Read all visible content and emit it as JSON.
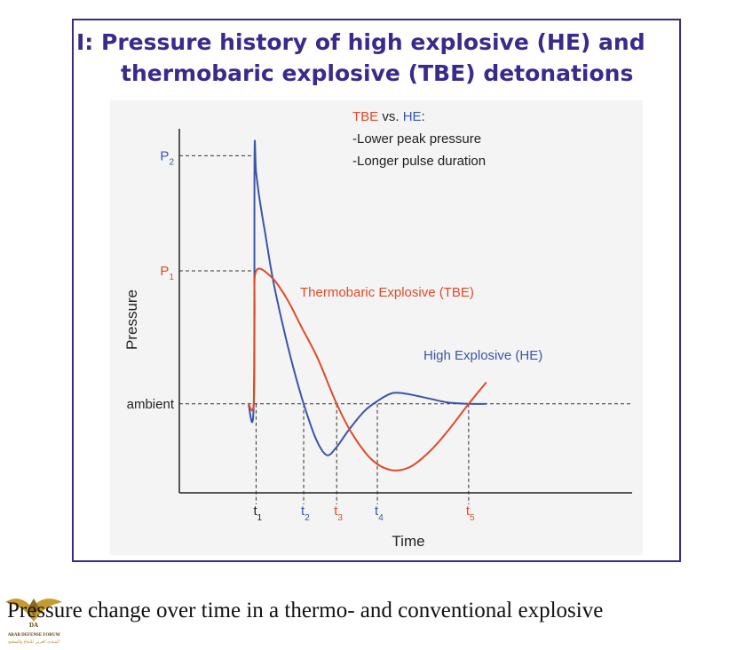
{
  "chart_data": {
    "type": "line",
    "title_line1": "I: Pressure history of high explosive (HE) and",
    "title_line2": "thermobaric explosive (TBE) detonations",
    "xlabel": "Time",
    "ylabel": "Pressure",
    "x_ticks": [
      {
        "label": "t",
        "sub": "1",
        "x": 1.0,
        "color": "#222222"
      },
      {
        "label": "t",
        "sub": "2",
        "x": 1.62,
        "color": "#3b55a7"
      },
      {
        "label": "t",
        "sub": "3",
        "x": 2.05,
        "color": "#e04a28"
      },
      {
        "label": "t",
        "sub": "4",
        "x": 2.58,
        "color": "#3b55a7"
      },
      {
        "label": "t",
        "sub": "5",
        "x": 3.77,
        "color": "#e04a28"
      }
    ],
    "y_levels": [
      {
        "label": "P",
        "sub": "2",
        "y": 9.2,
        "color": "#3b55a7"
      },
      {
        "label": "P",
        "sub": "1",
        "y": 4.93,
        "color": "#e04a28"
      },
      {
        "label": "ambient",
        "sub": "",
        "y": 0,
        "color": "#222222"
      }
    ],
    "xlim": [
      0,
      5.9
    ],
    "ylim": [
      -3.3,
      10.2
    ],
    "series": [
      {
        "name": "High Explosive (HE)",
        "color": "#3b55a7",
        "points": [
          [
            0.9,
            0
          ],
          [
            0.97,
            0
          ],
          [
            0.98,
            9.2
          ],
          [
            1.0,
            8.6
          ],
          [
            1.05,
            7.5
          ],
          [
            1.12,
            6.3
          ],
          [
            1.22,
            4.6
          ],
          [
            1.35,
            2.9
          ],
          [
            1.48,
            1.4
          ],
          [
            1.62,
            0
          ],
          [
            1.78,
            -1.3
          ],
          [
            1.92,
            -1.9
          ],
          [
            2.05,
            -1.6
          ],
          [
            2.2,
            -1.0
          ],
          [
            2.4,
            -0.3
          ],
          [
            2.58,
            0.1
          ],
          [
            2.78,
            0.4
          ],
          [
            3.0,
            0.35
          ],
          [
            3.25,
            0.2
          ],
          [
            3.5,
            0.05
          ],
          [
            3.77,
            0
          ],
          [
            4.0,
            0
          ]
        ]
      },
      {
        "name": "Thermobaric Explosive (TBE)",
        "color": "#e04a28",
        "points": [
          [
            0.9,
            0
          ],
          [
            0.97,
            0
          ],
          [
            0.98,
            3.3
          ],
          [
            1.0,
            4.93
          ],
          [
            1.2,
            4.7
          ],
          [
            1.4,
            3.9
          ],
          [
            1.6,
            2.8
          ],
          [
            1.8,
            1.7
          ],
          [
            2.05,
            0
          ],
          [
            2.25,
            -1.1
          ],
          [
            2.5,
            -2.05
          ],
          [
            2.75,
            -2.45
          ],
          [
            3.0,
            -2.35
          ],
          [
            3.25,
            -1.8
          ],
          [
            3.5,
            -1.0
          ],
          [
            3.77,
            0
          ],
          [
            4.0,
            0.8
          ]
        ]
      }
    ],
    "annotations": {
      "tbe_label": "Thermobaric Explosive (TBE)",
      "he_label": "High Explosive (HE)",
      "legend_tbe": "TBE",
      "legend_vs": " vs. ",
      "legend_he": "HE",
      "legend_colon": ":",
      "note1": "-Lower peak pressure",
      "note2": "-Longer pulse duration"
    }
  },
  "caption": "Pressure change over time in a thermo- and conventional explosive",
  "logo": {
    "text_line1": "ARAB DEFENSE FORUM",
    "text_line2": "المنتدى العربي للدفاع والتسليح",
    "initials": "DA"
  }
}
